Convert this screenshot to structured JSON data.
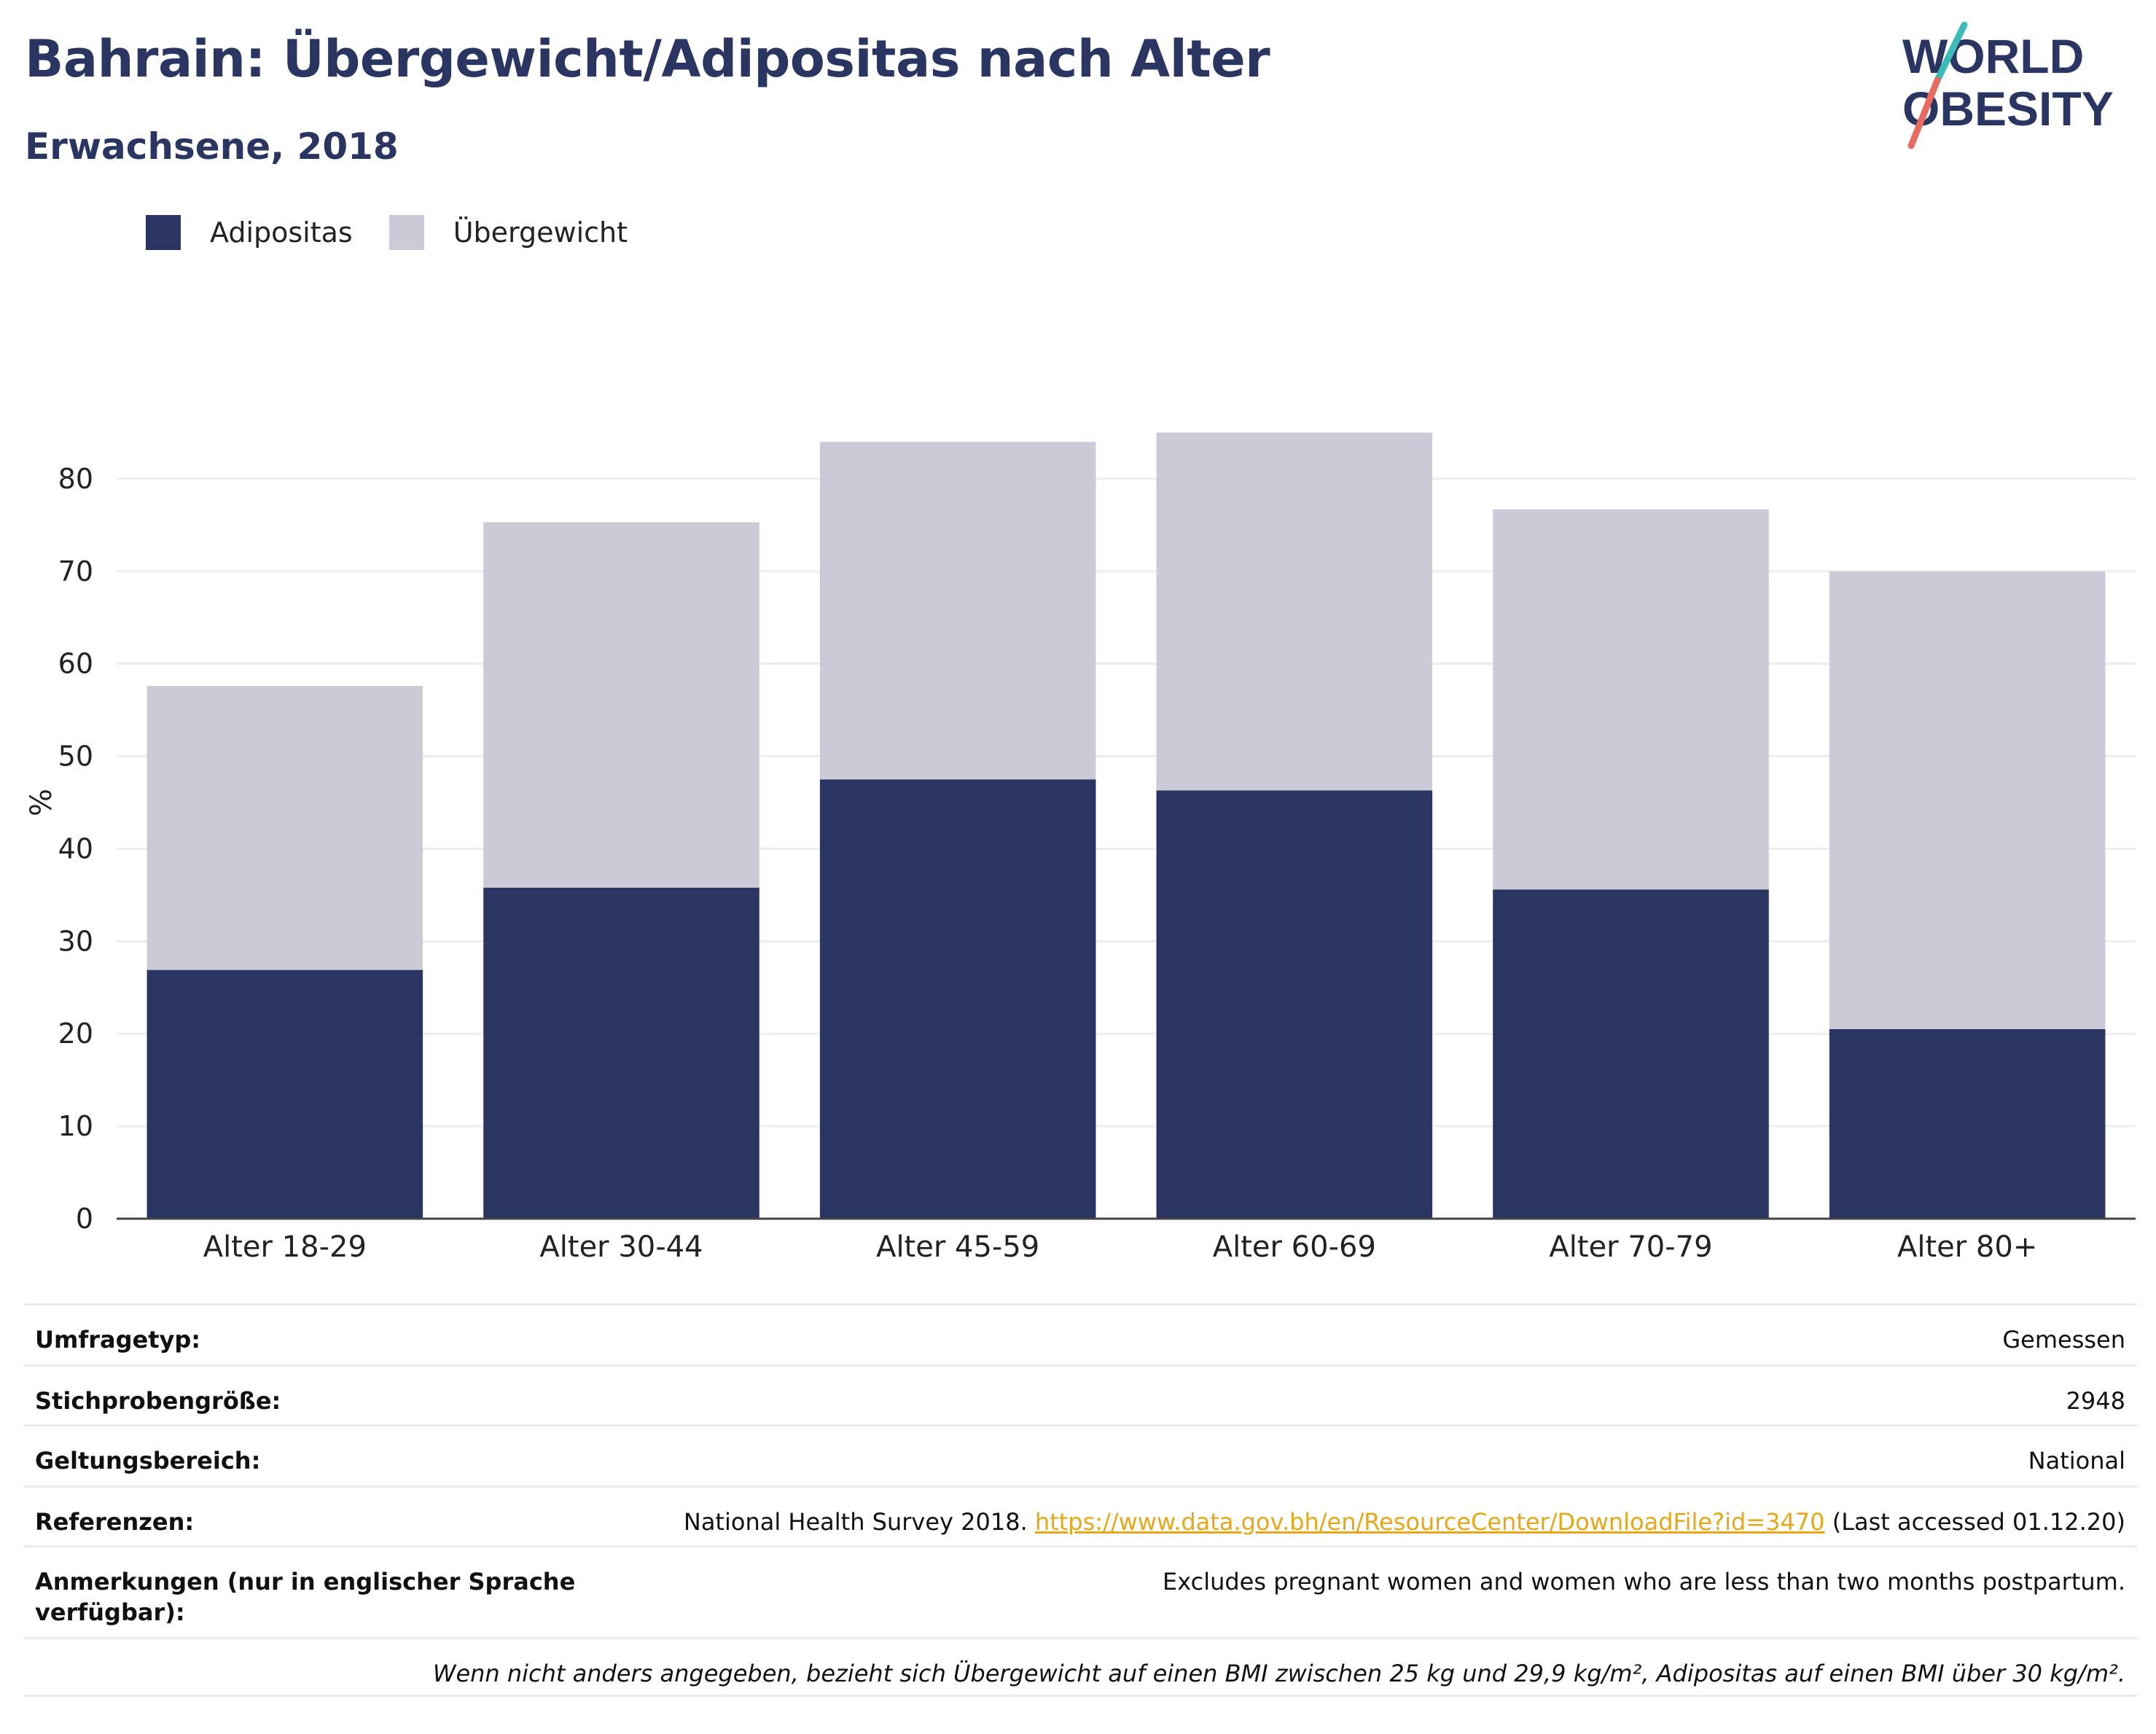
{
  "header": {
    "title": "Bahrain: Übergewicht/Adipositas nach Alter",
    "subtitle": "Erwachsene, 2018"
  },
  "logo": {
    "line1": "WORLD",
    "line2": "OBESITY"
  },
  "colors": {
    "obesity": "#2a3661",
    "overweight": "#cacbd7",
    "text": "#2a3661",
    "link": "#e6a817"
  },
  "chart_data": {
    "type": "bar",
    "stacked": true,
    "categories": [
      "Alter 18-29",
      "Alter 30-44",
      "Alter 45-59",
      "Alter 60-69",
      "Alter 70-79",
      "Alter 80+"
    ],
    "series": [
      {
        "name": "Adipositas",
        "values": [
          26.9,
          35.8,
          47.5,
          46.3,
          35.6,
          20.5
        ]
      },
      {
        "name": "Übergewicht",
        "values": [
          30.7,
          39.5,
          36.5,
          38.7,
          41.1,
          49.5
        ]
      }
    ],
    "ylabel": "%",
    "ylim": [
      0,
      90
    ],
    "yticks": [
      0,
      10,
      20,
      30,
      40,
      50,
      60,
      70,
      80
    ],
    "grid": true,
    "legend_position": "top-left"
  },
  "table": [
    {
      "key": "Umfragetyp:",
      "value": "Gemessen"
    },
    {
      "key": "Stichprobengröße:",
      "value": "2948"
    },
    {
      "key": "Geltungsbereich:",
      "value": "National"
    },
    {
      "key": "Referenzen:",
      "value_prefix": "National Health Survey 2018. ",
      "link": "https://www.data.gov.bh/en/ResourceCenter/DownloadFile?id=3470",
      "value_suffix": " (Last accessed 01.12.20)"
    },
    {
      "key": "Anmerkungen (nur in englischer Sprache verfügbar):",
      "value": "Excludes pregnant women and women who are less than two months postpartum."
    }
  ],
  "footnote": "Wenn nicht anders angegeben, bezieht sich Übergewicht auf einen BMI zwischen 25 kg und 29,9 kg/m², Adipositas auf einen BMI über 30 kg/m²."
}
